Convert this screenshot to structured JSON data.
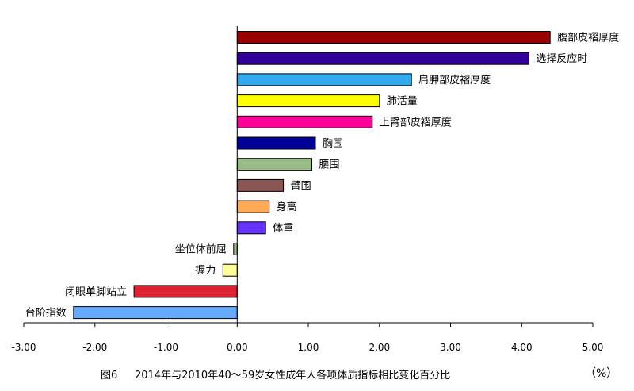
{
  "chart_data": {
    "type": "bar",
    "orientation": "horizontal",
    "categories": [
      "腹部皮褶厚度",
      "选择反应时",
      "肩胛部皮褶厚度",
      "肺活量",
      "上臂部皮褶厚度",
      "胸围",
      "腰围",
      "臂围",
      "身高",
      "体重",
      "坐位体前屈",
      "握力",
      "闭眼单脚站立",
      "台阶指数"
    ],
    "values": [
      4.4,
      4.1,
      2.45,
      2.0,
      1.9,
      1.1,
      1.05,
      0.65,
      0.45,
      0.4,
      -0.05,
      -0.2,
      -1.45,
      -2.3
    ],
    "colors": [
      "#990000",
      "#330099",
      "#33aaee",
      "#ffff00",
      "#ff0099",
      "#000099",
      "#99bb88",
      "#885555",
      "#ffaa55",
      "#6633ff",
      "#99bb88",
      "#ffff99",
      "#dd2233",
      "#66aaff"
    ],
    "xlim": [
      -3,
      5
    ],
    "xticks": [
      "-3.00",
      "-2.00",
      "-1.00",
      "0.00",
      "1.00",
      "2.00",
      "3.00",
      "4.00",
      "5.00"
    ],
    "grid": false,
    "legend": "none"
  },
  "caption": {
    "fig_label": "图6",
    "title": "2014年与2010年40～59岁女性成年人各项体质指标相比变化百分比",
    "unit": "（%）"
  }
}
